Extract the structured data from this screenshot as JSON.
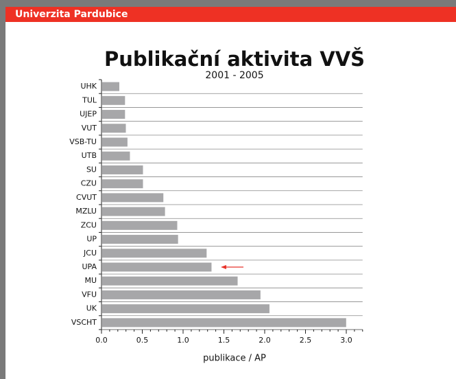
{
  "header": {
    "title": "Univerzita Pardubice"
  },
  "chart_data": {
    "type": "bar",
    "orientation": "horizontal",
    "title": "Publikační aktivita VVŠ",
    "subtitle": "2001 - 2005",
    "x_label": "publikace / AP",
    "categories": [
      "UHK",
      "TUL",
      "UJEP",
      "VUT",
      "VSB-TU",
      "UTB",
      "SU",
      "CZU",
      "CVUT",
      "MZLU",
      "ZCU",
      "UP",
      "JCU",
      "UPA",
      "MU",
      "VFU",
      "UK",
      "VSCHT"
    ],
    "values": [
      0.21,
      0.28,
      0.28,
      0.29,
      0.31,
      0.34,
      0.5,
      0.5,
      0.75,
      0.77,
      0.92,
      0.93,
      1.28,
      1.34,
      1.66,
      1.94,
      2.05,
      2.99
    ],
    "color": "#a7a7a9",
    "xlim": [
      0,
      3.2
    ],
    "xticks": [
      {
        "value": 0,
        "label": "0.0"
      },
      {
        "value": 0.5,
        "label": "0.5"
      },
      {
        "value": 1,
        "label": "1.0"
      },
      {
        "value": 1.5,
        "label": "1.5"
      },
      {
        "value": 2,
        "label": "2.0"
      },
      {
        "value": 2.5,
        "label": "2.5"
      },
      {
        "value": 3,
        "label": "3.0"
      }
    ],
    "xminorticks": [
      0.1,
      0.2,
      0.3,
      0.4,
      0.6,
      0.7,
      0.8,
      0.9,
      1.1,
      1.2,
      1.3,
      1.4,
      1.6,
      1.7,
      1.8,
      1.9,
      2.1,
      2.2,
      2.3,
      2.4,
      2.6,
      2.7,
      2.8,
      2.9,
      3.1,
      3.2
    ],
    "grid": true
  }
}
